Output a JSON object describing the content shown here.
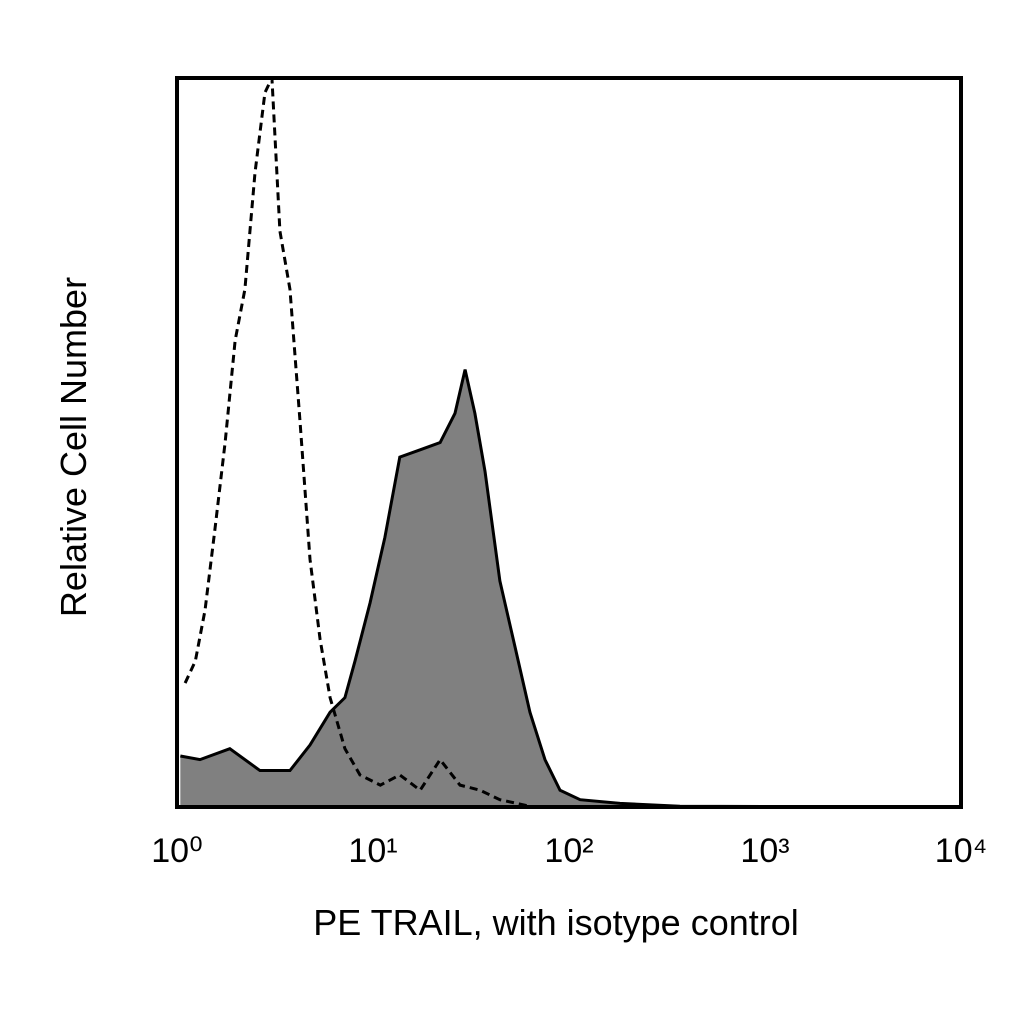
{
  "chart_data": {
    "type": "histogram",
    "x_label": "PE TRAIL, with isotype control",
    "y_label": "Relative Cell Number",
    "log_x": true,
    "xlim": [
      1,
      10000
    ],
    "xticks": [
      {
        "value": 1,
        "label": "10⁰"
      },
      {
        "value": 10,
        "label": "10¹"
      },
      {
        "value": 100,
        "label": "10²"
      },
      {
        "value": 1000,
        "label": "10³"
      },
      {
        "value": 10000,
        "label": "10⁴"
      }
    ],
    "ylim": [
      0,
      100
    ],
    "series": [
      {
        "color": "#000000",
        "fill": "#808080",
        "dashed": false,
        "x": [
          1.04,
          1.31,
          1.86,
          2.65,
          3.77,
          4.77,
          6.04,
          7.19,
          8.09,
          9.66,
          11.5,
          13.7,
          17.4,
          22.0,
          26.2,
          29.5,
          33.1,
          37.3,
          44.4,
          53.0,
          63.2,
          75.4,
          90.0,
          114,
          182,
          368,
          9890
        ],
        "values": [
          7,
          6.5,
          8,
          5,
          5,
          8.5,
          13,
          15,
          20,
          28,
          37,
          48,
          49,
          50,
          54,
          60,
          54,
          46,
          31,
          22,
          13,
          6.5,
          2.3,
          1,
          0.5,
          0.1,
          0
        ]
      },
      {
        "color": "#000000",
        "fill": null,
        "dashed": true,
        "x": [
          1.1,
          1.24,
          1.39,
          1.56,
          1.76,
          1.98,
          2.22,
          2.5,
          2.81,
          3.05,
          3.35,
          3.77,
          4.24,
          4.77,
          5.37,
          6.04,
          7.19,
          8.58,
          10.9,
          13.7,
          17.4,
          22.0,
          27.8,
          35.2,
          44.4,
          63.2
        ],
        "values": [
          17,
          20,
          27,
          38,
          50,
          64,
          71,
          87,
          98,
          100,
          79,
          71,
          53,
          34,
          23,
          15,
          8,
          4.4,
          3,
          4.4,
          2.3,
          6.5,
          3,
          2.3,
          1,
          0.1
        ]
      }
    ]
  }
}
